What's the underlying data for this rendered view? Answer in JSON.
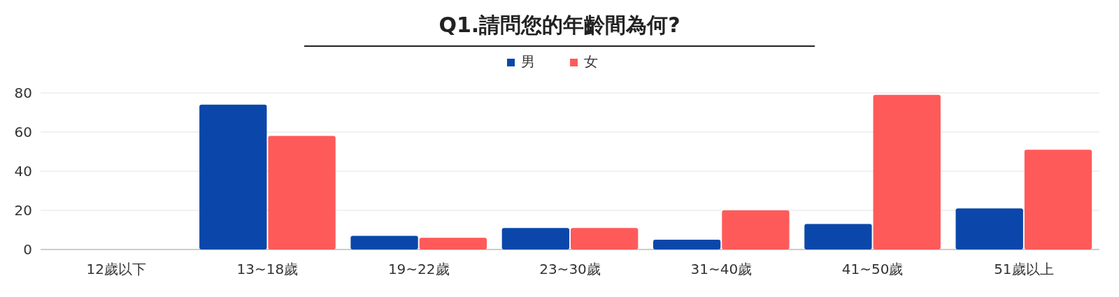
{
  "chart_data": {
    "type": "bar",
    "title": "Q1.請問您的年齡間為何?",
    "categories": [
      "12歲以下",
      "13~18歲",
      "19~22歲",
      "23~30歲",
      "31~40歲",
      "41~50歲",
      "51歲以上"
    ],
    "series": [
      {
        "name": "男",
        "color": "#0b47aa",
        "values": [
          0,
          74,
          7,
          11,
          5,
          13,
          21
        ]
      },
      {
        "name": "女",
        "color": "#ff5a5a",
        "values": [
          0,
          58,
          6,
          11,
          20,
          79,
          51
        ]
      }
    ],
    "ylim": [
      0,
      80
    ],
    "yticks": [
      0,
      20,
      40,
      60,
      80
    ],
    "grid": "y",
    "legend": "top"
  }
}
